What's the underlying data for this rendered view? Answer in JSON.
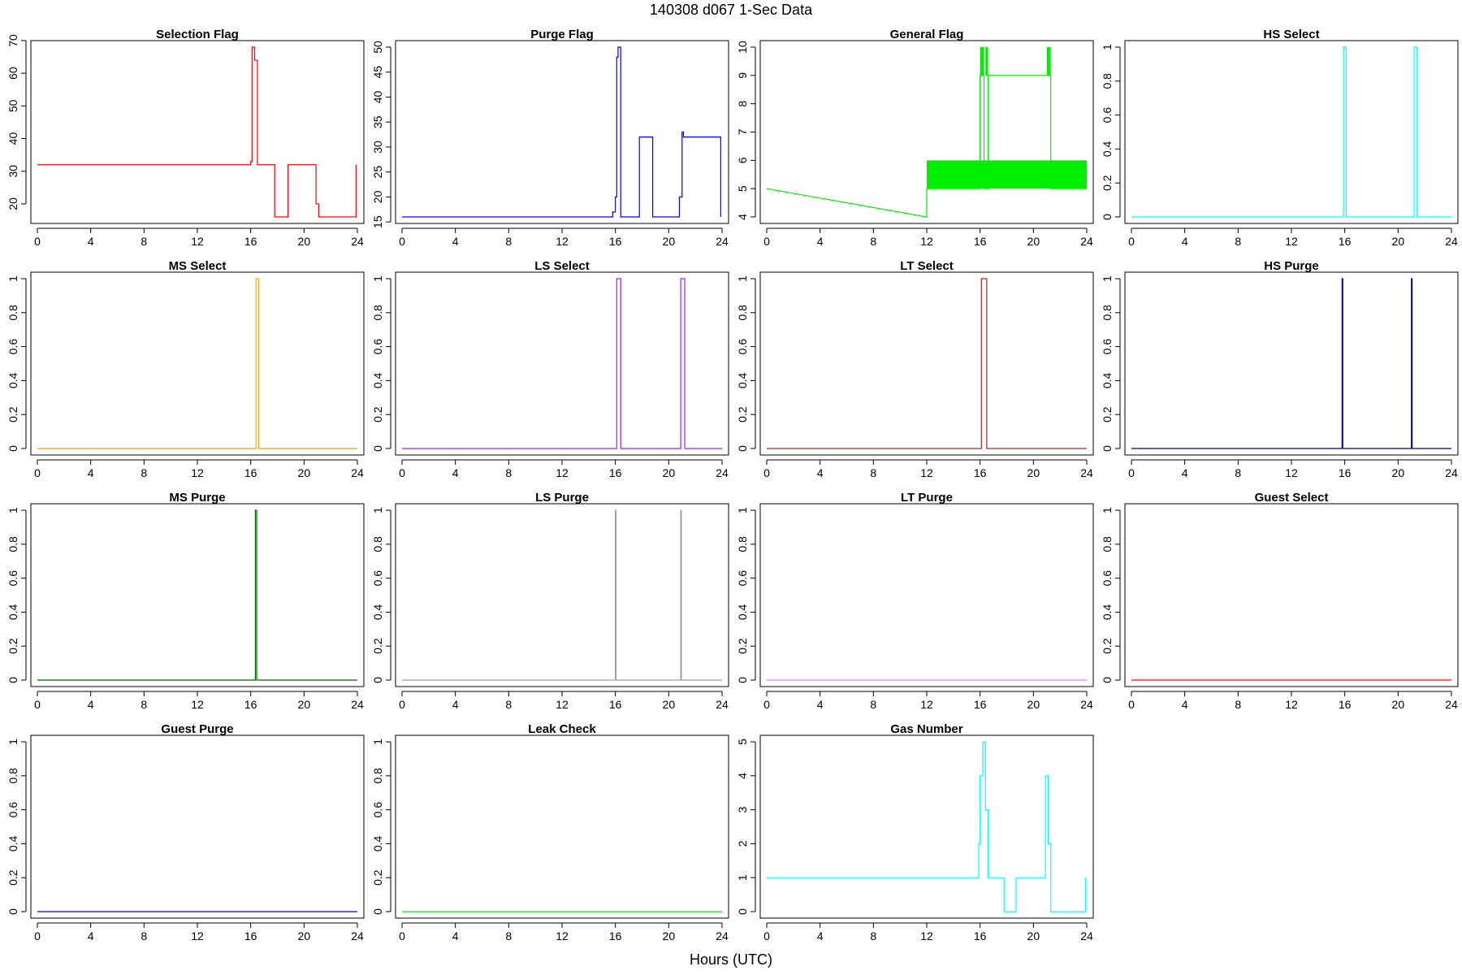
{
  "figure": {
    "title": "140308   d067   1-Sec Data",
    "xlabel": "Hours (UTC)"
  },
  "chart_data": [
    {
      "type": "line",
      "title": "Selection Flag",
      "color": "#ff0000",
      "xlim": [
        0,
        24
      ],
      "ylim": [
        16,
        68
      ],
      "xticks": [
        0,
        4,
        8,
        12,
        16,
        20,
        24
      ],
      "yticks": [
        20,
        30,
        40,
        50,
        60,
        70
      ],
      "series": [
        {
          "name": "Selection Flag",
          "x": [
            0,
            16,
            16,
            16.1,
            16.1,
            16.3,
            16.3,
            16.5,
            16.5,
            17.8,
            17.8,
            18.8,
            18.8,
            20.9,
            20.9,
            21.1,
            21.1,
            23.9,
            23.9
          ],
          "y": [
            32,
            32,
            33,
            33,
            68,
            68,
            64,
            64,
            32,
            32,
            16,
            16,
            32,
            32,
            20,
            20,
            16,
            16,
            32
          ]
        }
      ]
    },
    {
      "type": "line",
      "title": "Purge Flag",
      "color": "#0000ff",
      "xlim": [
        0,
        24
      ],
      "ylim": [
        16,
        50
      ],
      "xticks": [
        0,
        4,
        8,
        12,
        16,
        20,
        24
      ],
      "yticks": [
        15,
        20,
        25,
        30,
        35,
        40,
        45,
        50
      ],
      "series": [
        {
          "name": "Purge Flag",
          "x": [
            0,
            15.8,
            15.8,
            16,
            16,
            16.1,
            16.1,
            16.2,
            16.2,
            16.4,
            16.4,
            17.8,
            17.8,
            18.8,
            18.8,
            20.8,
            20.8,
            21,
            21,
            21.1,
            21.1,
            23.9,
            23.9
          ],
          "y": [
            16,
            16,
            17,
            17,
            20,
            20,
            48,
            48,
            50,
            50,
            16,
            16,
            32,
            32,
            16,
            16,
            20,
            20,
            33,
            33,
            32,
            32,
            16
          ]
        }
      ]
    },
    {
      "type": "line",
      "title": "General Flag",
      "color": "#00ee00",
      "xlim": [
        0,
        24
      ],
      "ylim": [
        4,
        10
      ],
      "xticks": [
        0,
        4,
        8,
        12,
        16,
        20,
        24
      ],
      "yticks": [
        4,
        5,
        6,
        7,
        8,
        9,
        10
      ],
      "series": [
        {
          "name": "General Flag",
          "x": [
            0,
            12,
            12,
            16,
            16,
            16.3,
            16.3,
            16.6,
            16.6,
            21,
            21,
            21.3,
            21.3,
            24
          ],
          "y": [
            5,
            4,
            5,
            5,
            9,
            9,
            5,
            5,
            9,
            9,
            9,
            9,
            5,
            5
          ]
        }
      ],
      "bands": [
        {
          "x0": 12,
          "x1": 24,
          "y0": 5,
          "y1": 6
        },
        {
          "x0": 16,
          "x1": 16.3,
          "y0": 9,
          "y1": 10
        },
        {
          "x0": 16.4,
          "x1": 16.6,
          "y0": 9,
          "y1": 10
        },
        {
          "x0": 21,
          "x1": 21.3,
          "y0": 9,
          "y1": 10
        }
      ]
    },
    {
      "type": "line",
      "title": "HS Select",
      "color": "#00ffff",
      "xlim": [
        0,
        24
      ],
      "ylim": [
        0,
        1
      ],
      "xticks": [
        0,
        4,
        8,
        12,
        16,
        20,
        24
      ],
      "yticks": [
        0,
        0.2,
        0.4,
        0.6,
        0.8,
        1
      ],
      "series": [
        {
          "name": "HS Select",
          "x": [
            0,
            15.9,
            15.9,
            16.1,
            16.1,
            21.2,
            21.2,
            21.4,
            21.4,
            24
          ],
          "y": [
            0,
            0,
            1,
            1,
            0,
            0,
            1,
            1,
            0,
            0
          ]
        }
      ]
    },
    {
      "type": "line",
      "title": "MS Select",
      "color": "#ffa500",
      "xlim": [
        0,
        24
      ],
      "ylim": [
        0,
        1
      ],
      "xticks": [
        0,
        4,
        8,
        12,
        16,
        20,
        24
      ],
      "yticks": [
        0,
        0.2,
        0.4,
        0.6,
        0.8,
        1
      ],
      "series": [
        {
          "name": "MS Select",
          "x": [
            0,
            16.4,
            16.4,
            16.6,
            16.6,
            24
          ],
          "y": [
            0,
            0,
            1,
            1,
            0,
            0
          ]
        }
      ]
    },
    {
      "type": "line",
      "title": "LS Select",
      "color": "#a020f0",
      "xlim": [
        0,
        24
      ],
      "ylim": [
        0,
        1
      ],
      "xticks": [
        0,
        4,
        8,
        12,
        16,
        20,
        24
      ],
      "yticks": [
        0,
        0.2,
        0.4,
        0.6,
        0.8,
        1
      ],
      "series": [
        {
          "name": "LS Select",
          "x": [
            0,
            16.1,
            16.1,
            16.4,
            16.4,
            20.9,
            20.9,
            21.2,
            21.2,
            24
          ],
          "y": [
            0,
            0,
            1,
            1,
            0,
            0,
            1,
            1,
            0,
            0
          ]
        }
      ]
    },
    {
      "type": "line",
      "title": "LT Select",
      "color": "#a52a2a",
      "xlim": [
        0,
        24
      ],
      "ylim": [
        0,
        1
      ],
      "xticks": [
        0,
        4,
        8,
        12,
        16,
        20,
        24
      ],
      "yticks": [
        0,
        0.2,
        0.4,
        0.6,
        0.8,
        1
      ],
      "series": [
        {
          "name": "LT Select",
          "x": [
            0,
            16.1,
            16.1,
            16.5,
            16.5,
            24
          ],
          "y": [
            0,
            0,
            1,
            1,
            0,
            0
          ]
        }
      ]
    },
    {
      "type": "line",
      "title": "HS Purge",
      "color": "#000080",
      "xlim": [
        0,
        24
      ],
      "ylim": [
        0,
        1
      ],
      "xticks": [
        0,
        4,
        8,
        12,
        16,
        20,
        24
      ],
      "yticks": [
        0,
        0.2,
        0.4,
        0.6,
        0.8,
        1
      ],
      "series": [
        {
          "name": "HS Purge",
          "x": [
            0,
            15.8,
            15.8,
            15.85,
            15.85,
            21,
            21,
            21.05,
            21.05,
            24
          ],
          "y": [
            0,
            0,
            1,
            1,
            0,
            0,
            1,
            1,
            0,
            0
          ]
        }
      ]
    },
    {
      "type": "line",
      "title": "MS Purge",
      "color": "#006400",
      "xlim": [
        0,
        24
      ],
      "ylim": [
        0,
        1
      ],
      "xticks": [
        0,
        4,
        8,
        12,
        16,
        20,
        24
      ],
      "yticks": [
        0,
        0.2,
        0.4,
        0.6,
        0.8,
        1
      ],
      "series": [
        {
          "name": "MS Purge",
          "x": [
            0,
            16.35,
            16.35,
            16.45,
            16.45,
            24
          ],
          "y": [
            0,
            0,
            1,
            1,
            0,
            0
          ]
        }
      ]
    },
    {
      "type": "line",
      "title": "LS Purge",
      "color": "#9e9e9e",
      "xlim": [
        0,
        24
      ],
      "ylim": [
        0,
        1
      ],
      "xticks": [
        0,
        4,
        8,
        12,
        16,
        20,
        24
      ],
      "yticks": [
        0,
        0.2,
        0.4,
        0.6,
        0.8,
        1
      ],
      "series": [
        {
          "name": "LS Purge",
          "x": [
            0,
            16,
            16,
            16.05,
            16.05,
            20.9,
            20.9,
            20.95,
            20.95,
            24
          ],
          "y": [
            0,
            0,
            1,
            1,
            0,
            0,
            1,
            1,
            0,
            0
          ]
        }
      ]
    },
    {
      "type": "line",
      "title": "LT Purge",
      "color": "#ee82ee",
      "xlim": [
        0,
        24
      ],
      "ylim": [
        0,
        1
      ],
      "xticks": [
        0,
        4,
        8,
        12,
        16,
        20,
        24
      ],
      "yticks": [
        0,
        0.2,
        0.4,
        0.6,
        0.8,
        1
      ],
      "series": [
        {
          "name": "LT Purge",
          "x": [
            0,
            24
          ],
          "y": [
            0,
            0
          ]
        }
      ]
    },
    {
      "type": "line",
      "title": "Guest Select",
      "color": "#ff0000",
      "xlim": [
        0,
        24
      ],
      "ylim": [
        0,
        1
      ],
      "xticks": [
        0,
        4,
        8,
        12,
        16,
        20,
        24
      ],
      "yticks": [
        0,
        0.2,
        0.4,
        0.6,
        0.8,
        1
      ],
      "series": [
        {
          "name": "Guest Select",
          "x": [
            0,
            24
          ],
          "y": [
            0,
            0
          ]
        }
      ]
    },
    {
      "type": "line",
      "title": "Guest Purge",
      "color": "#0000ff",
      "xlim": [
        0,
        24
      ],
      "ylim": [
        0,
        1
      ],
      "xticks": [
        0,
        4,
        8,
        12,
        16,
        20,
        24
      ],
      "yticks": [
        0,
        0.2,
        0.4,
        0.6,
        0.8,
        1
      ],
      "series": [
        {
          "name": "Guest Purge",
          "x": [
            0,
            24
          ],
          "y": [
            0,
            0
          ]
        }
      ]
    },
    {
      "type": "line",
      "title": "Leak Check",
      "color": "#00ee00",
      "xlim": [
        0,
        24
      ],
      "ylim": [
        0,
        1
      ],
      "xticks": [
        0,
        4,
        8,
        12,
        16,
        20,
        24
      ],
      "yticks": [
        0,
        0.2,
        0.4,
        0.6,
        0.8,
        1
      ],
      "series": [
        {
          "name": "Leak Check",
          "x": [
            0,
            24
          ],
          "y": [
            0,
            0
          ]
        }
      ]
    },
    {
      "type": "line",
      "title": "Gas Number",
      "color": "#00ffff",
      "xlim": [
        0,
        24
      ],
      "ylim": [
        0,
        5
      ],
      "xticks": [
        0,
        4,
        8,
        12,
        16,
        20,
        24
      ],
      "yticks": [
        0,
        1,
        2,
        3,
        4,
        5
      ],
      "series": [
        {
          "name": "Gas Number",
          "x": [
            0,
            15.9,
            15.9,
            16,
            16,
            16.2,
            16.2,
            16.4,
            16.4,
            16.6,
            16.6,
            17.8,
            17.8,
            18.7,
            18.7,
            20.9,
            20.9,
            21.1,
            21.1,
            21.3,
            21.3,
            23.9,
            23.9
          ],
          "y": [
            1,
            1,
            2,
            2,
            4,
            4,
            5,
            5,
            3,
            3,
            1,
            1,
            0,
            0,
            1,
            1,
            4,
            4,
            2,
            2,
            0,
            0,
            1
          ]
        }
      ]
    }
  ]
}
